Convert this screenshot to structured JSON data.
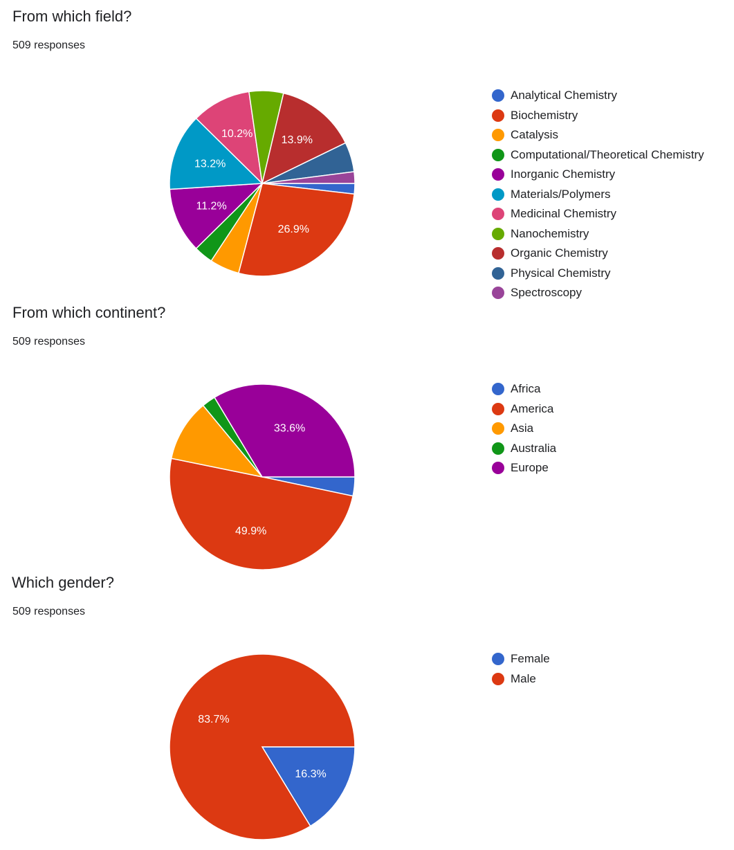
{
  "chart_data": [
    {
      "type": "pie",
      "title": "From which field?",
      "subtitle": "509 responses",
      "legend_position": "right",
      "slices": [
        {
          "label": "Analytical Chemistry",
          "percent": 1.8,
          "color": "#3366cc",
          "value_label": ""
        },
        {
          "label": "Biochemistry",
          "percent": 26.9,
          "color": "#dc3912",
          "value_label": "26.9%"
        },
        {
          "label": "Catalysis",
          "percent": 5.1,
          "color": "#ff9900",
          "value_label": ""
        },
        {
          "label": "Computational/Theoretical Chemistry",
          "percent": 3.3,
          "color": "#109618",
          "value_label": ""
        },
        {
          "label": "Inorganic Chemistry",
          "percent": 11.2,
          "color": "#990099",
          "value_label": "11.2%"
        },
        {
          "label": "Materials/Polymers",
          "percent": 13.2,
          "color": "#0099c6",
          "value_label": "13.2%"
        },
        {
          "label": "Medicinal Chemistry",
          "percent": 10.2,
          "color": "#dd4477",
          "value_label": "10.2%"
        },
        {
          "label": "Nanochemistry",
          "percent": 5.9,
          "color": "#66aa00",
          "value_label": ""
        },
        {
          "label": "Organic Chemistry",
          "percent": 13.9,
          "color": "#b82e2e",
          "value_label": "13.9%"
        },
        {
          "label": "Physical Chemistry",
          "percent": 5.1,
          "color": "#316395",
          "value_label": ""
        },
        {
          "label": "Spectroscopy",
          "percent": 2.0,
          "color": "#994499",
          "value_label": ""
        }
      ]
    },
    {
      "type": "pie",
      "title": "From which continent?",
      "subtitle": "509 responses",
      "legend_position": "right",
      "slices": [
        {
          "label": "Africa",
          "percent": 3.3,
          "color": "#3366cc",
          "value_label": ""
        },
        {
          "label": "America",
          "percent": 49.9,
          "color": "#dc3912",
          "value_label": "49.9%"
        },
        {
          "label": "Asia",
          "percent": 10.8,
          "color": "#ff9900",
          "value_label": ""
        },
        {
          "label": "Australia",
          "percent": 2.4,
          "color": "#109618",
          "value_label": ""
        },
        {
          "label": "Europe",
          "percent": 33.6,
          "color": "#990099",
          "value_label": "33.6%"
        }
      ]
    },
    {
      "type": "pie",
      "title": "Which gender?",
      "subtitle": "509 responses",
      "legend_position": "right",
      "slices": [
        {
          "label": "Female",
          "percent": 16.3,
          "color": "#3366cc",
          "value_label": "16.3%"
        },
        {
          "label": "Male",
          "percent": 83.7,
          "color": "#dc3912",
          "value_label": "83.7%"
        }
      ]
    }
  ]
}
